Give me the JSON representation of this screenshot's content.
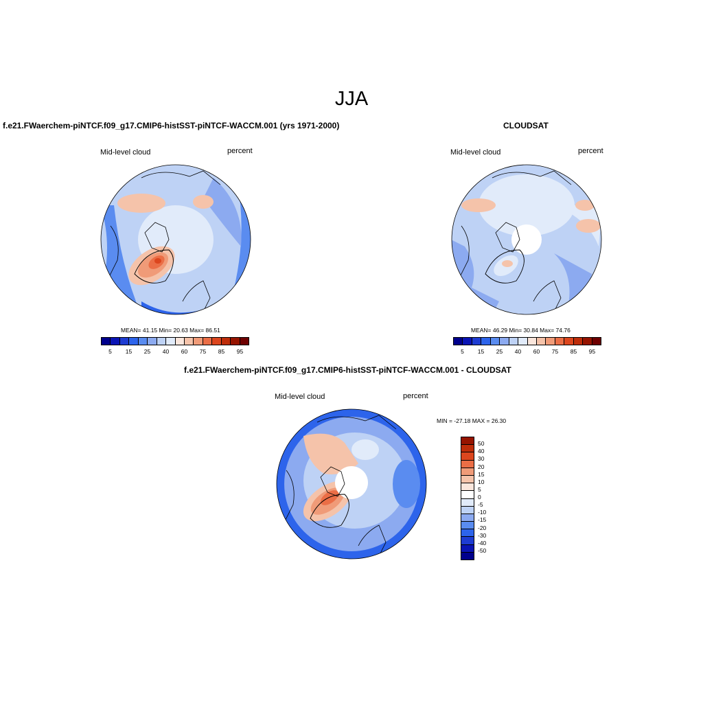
{
  "title": "JJA",
  "panels": [
    {
      "id": "model",
      "title": "f.e21.FWaerchem-piNTCF.f09_g17.CMIP6-histSST-piNTCF-WACCM.001 (yrs 1971-2000)",
      "left_label": "Mid-level cloud",
      "right_label": "percent",
      "stats": "MEAN=  41.15  Min=  20.63  Max=  86.51",
      "statistics": {
        "mean": 41.15,
        "min": 20.63,
        "max": 86.51
      }
    },
    {
      "id": "cloudsat",
      "title": "CLOUDSAT",
      "left_label": "Mid-level cloud",
      "right_label": "percent",
      "stats": "MEAN=  46.29  Min=  30.84  Max=  74.76",
      "statistics": {
        "mean": 46.29,
        "min": 30.84,
        "max": 74.76
      }
    },
    {
      "id": "difference",
      "title": "f.e21.FWaerchem-piNTCF.f09_g17.CMIP6-histSST-piNTCF-WACCM.001 - CLOUDSAT",
      "left_label": "Mid-level cloud",
      "right_label": "percent",
      "stats": "MIN = -27.18 MAX =  26.30",
      "statistics": {
        "min": -27.18,
        "max": 26.3
      }
    }
  ],
  "colorbar_top": {
    "colors": [
      "#00008c",
      "#0a14b4",
      "#1e3cd2",
      "#2d64eb",
      "#5a8cf0",
      "#8caaf0",
      "#bed2f5",
      "#e1ebfa",
      "#fae6dc",
      "#f5c3aa",
      "#f09b78",
      "#eb6e46",
      "#dc461e",
      "#be2d0a",
      "#961400",
      "#6e0000"
    ],
    "labels": [
      "5",
      "15",
      "25",
      "40",
      "60",
      "75",
      "85",
      "95"
    ]
  },
  "colorbar_diff": {
    "colors": [
      "#961400",
      "#be2d0a",
      "#dc461e",
      "#eb6e46",
      "#f09b78",
      "#f5c3aa",
      "#fae6dc",
      "#ffffff",
      "#e1ebfa",
      "#bed2f5",
      "#8caaf0",
      "#5a8cf0",
      "#2d64eb",
      "#1e3cd2",
      "#0a14b4",
      "#00008c"
    ],
    "labels": [
      "50",
      "40",
      "30",
      "20",
      "15",
      "10",
      "5",
      "0",
      "-5",
      "-10",
      "-15",
      "-20",
      "-30",
      "-40",
      "-50"
    ]
  },
  "map_colors": {
    "light_blue": "#bed2f5",
    "mid_blue": "#8caaf0",
    "blue": "#5a8cf0",
    "deep_blue": "#2d64eb",
    "pale": "#e1ebfa",
    "peach": "#f5c3aa",
    "salmon": "#f09b78",
    "red": "#eb6e46",
    "dark_red": "#dc461e"
  }
}
